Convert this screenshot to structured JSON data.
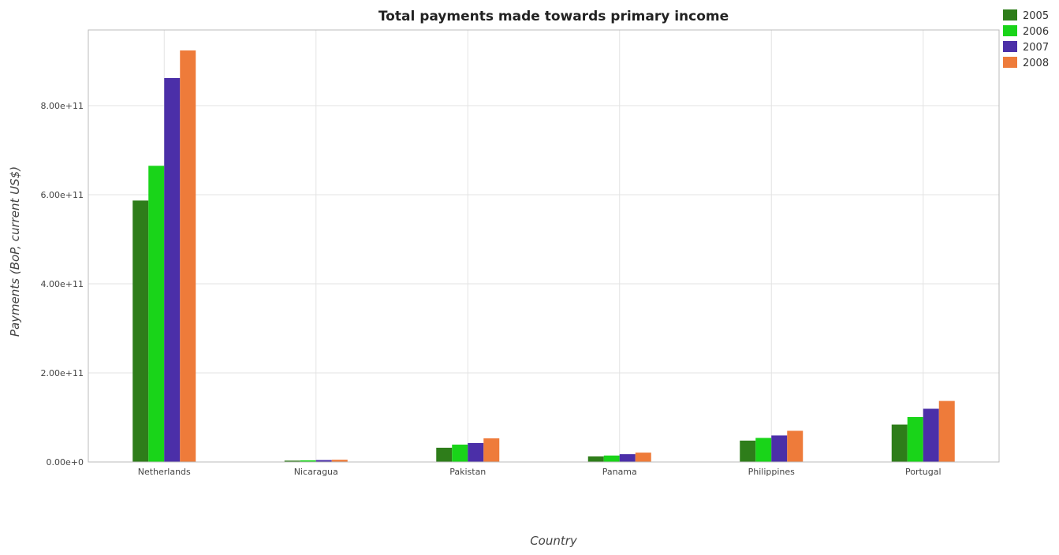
{
  "chart_data": {
    "type": "bar",
    "title": "Total payments made towards primary income",
    "xlabel": "Country",
    "ylabel": "Payments (BoP, current US$)",
    "categories": [
      "Netherlands",
      "Nicaragua",
      "Pakistan",
      "Panama",
      "Philippines",
      "Portugal"
    ],
    "series": [
      {
        "name": "2005",
        "color": "#2e7d1a",
        "values": [
          587000000000,
          3000000000,
          32000000000,
          12500000000,
          48000000000,
          84000000000
        ]
      },
      {
        "name": "2006",
        "color": "#19d419",
        "values": [
          665000000000,
          3600000000,
          39000000000,
          14500000000,
          54000000000,
          101000000000
        ]
      },
      {
        "name": "2007",
        "color": "#4b2fa8",
        "values": [
          862000000000,
          4300000000,
          42500000000,
          17500000000,
          59500000000,
          119500000000
        ]
      },
      {
        "name": "2008",
        "color": "#ee7b3a",
        "values": [
          924000000000,
          5000000000,
          53000000000,
          21000000000,
          70000000000,
          137000000000
        ]
      }
    ],
    "y_ticks": [
      {
        "value": 0,
        "label": "0.00e+0"
      },
      {
        "value": 200000000000,
        "label": "2.00e+11"
      },
      {
        "value": 400000000000,
        "label": "4.00e+11"
      },
      {
        "value": 600000000000,
        "label": "6.00e+11"
      },
      {
        "value": 800000000000,
        "label": "8.00e+11"
      }
    ],
    "ylim": [
      0,
      970000000000
    ],
    "grid": true,
    "legend_position": "top-right"
  }
}
